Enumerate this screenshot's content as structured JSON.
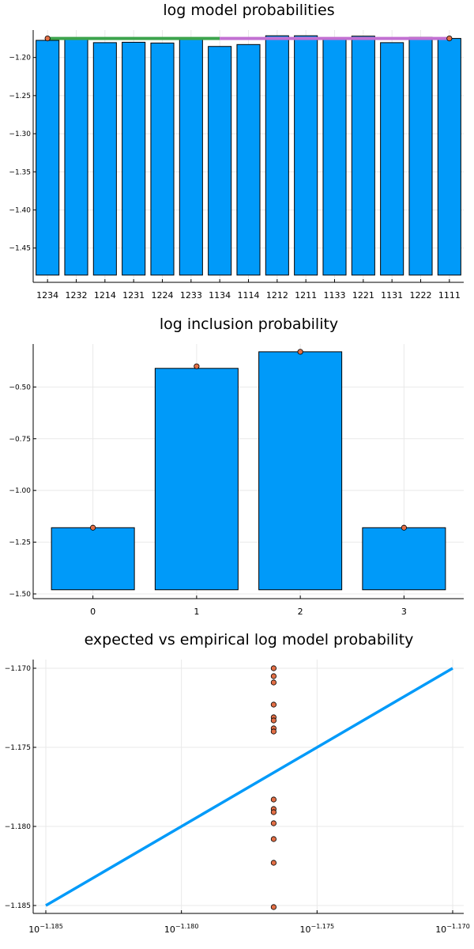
{
  "chart_data": [
    {
      "type": "bar",
      "title": "log model probabilities",
      "categories": [
        "1234",
        "1232",
        "1214",
        "1231",
        "1224",
        "1233",
        "1134",
        "1114",
        "1212",
        "1211",
        "1133",
        "1221",
        "1131",
        "1222",
        "1111"
      ],
      "values": [
        -1.1775,
        -1.1745,
        -1.1805,
        -1.18,
        -1.181,
        -1.1745,
        -1.1855,
        -1.183,
        -1.1715,
        -1.1715,
        -1.175,
        -1.172,
        -1.1805,
        -1.1735,
        -1.175
      ],
      "bar_bottom": -1.4855,
      "ylim": [
        -1.495,
        -1.164
      ],
      "yticks": [
        -1.2,
        -1.25,
        -1.3,
        -1.35,
        -1.4,
        -1.45
      ],
      "ytick_labels": [
        "−1.20",
        "−1.25",
        "−1.30",
        "−1.35",
        "−1.40",
        "−1.45"
      ],
      "markers": [
        {
          "category": "1234",
          "value": -1.175
        },
        {
          "category": "1111",
          "value": -1.175
        }
      ],
      "lines": [
        {
          "from": "1234",
          "to": "1134",
          "value": -1.175,
          "color": "#3da44d"
        },
        {
          "from": "1134",
          "to": "1111",
          "value": -1.175,
          "color": "#c271d2"
        }
      ],
      "colors": {
        "bar": "#009af9",
        "marker": "#e26f46"
      }
    },
    {
      "type": "bar",
      "title": "log inclusion probability",
      "categories": [
        "0",
        "1",
        "2",
        "3"
      ],
      "values": [
        -1.18,
        -0.41,
        -0.33,
        -1.18
      ],
      "bar_bottom": -1.48,
      "ylim": [
        -1.5,
        -0.3
      ],
      "yticks": [
        -0.5,
        -0.75,
        -1.0,
        -1.25,
        -1.5
      ],
      "ytick_labels": [
        "−0.50",
        "−0.75",
        "−1.00",
        "−1.25",
        "−1.50"
      ],
      "markers": [
        {
          "category": "0",
          "value": -1.18
        },
        {
          "category": "1",
          "value": -0.4
        },
        {
          "category": "2",
          "value": -0.33
        },
        {
          "category": "3",
          "value": -1.18
        }
      ],
      "colors": {
        "bar": "#009af9",
        "marker": "#e26f46"
      }
    },
    {
      "type": "scatter",
      "title": "expected vs empirical log model probability",
      "xscale": "log10",
      "xlim": [
        -1.185,
        -1.17
      ],
      "ylim": [
        -1.1852,
        -1.1695
      ],
      "xtick_exponents": [
        "−1.185",
        "−1.180",
        "−1.175",
        "−1.170"
      ],
      "xtick_values": [
        -1.185,
        -1.18,
        -1.175,
        -1.17
      ],
      "yticks": [
        -1.17,
        -1.175,
        -1.18,
        -1.185
      ],
      "ytick_labels": [
        "−1.170",
        "−1.175",
        "−1.180",
        "−1.185"
      ],
      "line": {
        "x": [
          -1.185,
          -1.17
        ],
        "y": [
          -1.185,
          -1.17
        ],
        "color": "#009af9"
      },
      "points": {
        "x": -1.1766,
        "y": [
          -1.17,
          -1.1705,
          -1.1709,
          -1.1723,
          -1.1731,
          -1.1733,
          -1.1738,
          -1.174,
          -1.1783,
          -1.1789,
          -1.1791,
          -1.1798,
          -1.1808,
          -1.1823,
          -1.1851
        ],
        "color": "#e26f46"
      }
    }
  ],
  "labels": {
    "exp_base": "10"
  }
}
